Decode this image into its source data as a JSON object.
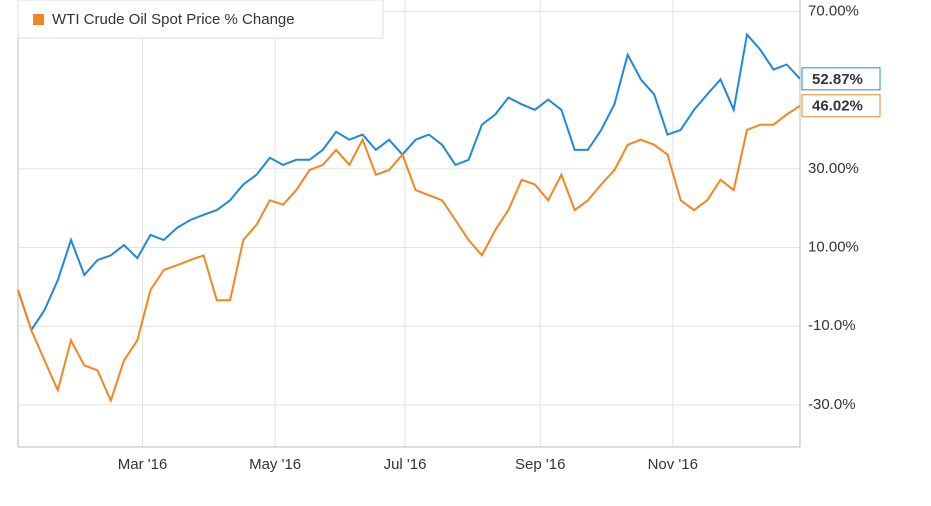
{
  "chart_data": {
    "type": "line",
    "series": [
      {
        "color": "#1f88dd",
        "values": [
          -0.8,
          -11,
          -5.9,
          1.7,
          11.9,
          3,
          6.8,
          8,
          10.6,
          7.3,
          13.2,
          11.9,
          15,
          17,
          18.3,
          19.5,
          22,
          26,
          28.5,
          32.8,
          31,
          32.3,
          32.3,
          34.8,
          39.4,
          37.4,
          38.7,
          34.8,
          37.4,
          33.6,
          37.4,
          38.7,
          36.1,
          31,
          32.3,
          41.2,
          43.8,
          48.1,
          46.4,
          45,
          47.6,
          45,
          34.8,
          34.8,
          39.9,
          46.4,
          59,
          52.7,
          48.9,
          38.7,
          39.9,
          45,
          48.9,
          52.7,
          45,
          64.1,
          60.3,
          55.2,
          56.5,
          52.87
        ],
        "value_labels": [
          null,
          null,
          null,
          null,
          null,
          null,
          null,
          null,
          null,
          null,
          null,
          null,
          null,
          null,
          null,
          null,
          null,
          null,
          null,
          null,
          null,
          null,
          null,
          null,
          null,
          null,
          null,
          null,
          null,
          null,
          null,
          null,
          null,
          null,
          null,
          null,
          null,
          null,
          null,
          null,
          null,
          null,
          null,
          null,
          null,
          null,
          null,
          null,
          null,
          null,
          null,
          null,
          null,
          null,
          null,
          null,
          null,
          null,
          null,
          "52.87%"
        ]
      },
      {
        "name": "WTI Crude Oil Spot Price % Change",
        "color": "#f5861f",
        "values": [
          -0.8,
          -11,
          -18.7,
          -26.3,
          -13.6,
          -20,
          -21.2,
          -28.9,
          -18.7,
          -13.6,
          -0.8,
          4.3,
          5.5,
          6.8,
          8,
          -3.4,
          -3.4,
          11.9,
          15.8,
          22,
          20.9,
          24.6,
          29.7,
          31,
          34.8,
          31,
          37.4,
          28.5,
          29.7,
          33.6,
          24.6,
          23.3,
          22,
          17,
          11.9,
          8,
          14.4,
          19.5,
          27.2,
          26,
          22,
          28.5,
          19.5,
          22,
          26,
          29.7,
          36.1,
          37.4,
          36.1,
          33.6,
          22,
          19.5,
          22,
          27.2,
          24.6,
          39.9,
          41.2,
          41.2,
          43.8,
          46.02
        ],
        "value_labels": [
          null,
          null,
          null,
          null,
          null,
          null,
          null,
          null,
          null,
          null,
          null,
          null,
          null,
          null,
          null,
          null,
          null,
          null,
          null,
          null,
          null,
          null,
          null,
          null,
          null,
          null,
          null,
          null,
          null,
          null,
          null,
          null,
          null,
          null,
          null,
          null,
          null,
          null,
          null,
          null,
          null,
          null,
          null,
          null,
          null,
          null,
          null,
          null,
          null,
          null,
          null,
          null,
          null,
          null,
          null,
          null,
          null,
          null,
          null,
          "46.02%"
        ]
      }
    ],
    "xlim": [
      0,
      59
    ],
    "xticks": [
      {
        "value": 9.4,
        "label": "Mar '16"
      },
      {
        "value": 19.4,
        "label": "May '16"
      },
      {
        "value": 29.2,
        "label": "Jul '16"
      },
      {
        "value": 39.4,
        "label": "Sep '16"
      },
      {
        "value": 49.4,
        "label": "Nov '16"
      }
    ],
    "ylim": [
      -40.7,
      72.9
    ],
    "yticks": [
      {
        "value": 70,
        "label": "70.00%"
      },
      {
        "value": 30,
        "label": "30.00%"
      },
      {
        "value": 10,
        "label": "10.00%"
      },
      {
        "value": -10,
        "label": "-10.0%"
      },
      {
        "value": -30,
        "label": "-30.0%"
      }
    ],
    "grid": true,
    "legend": "top-left"
  }
}
